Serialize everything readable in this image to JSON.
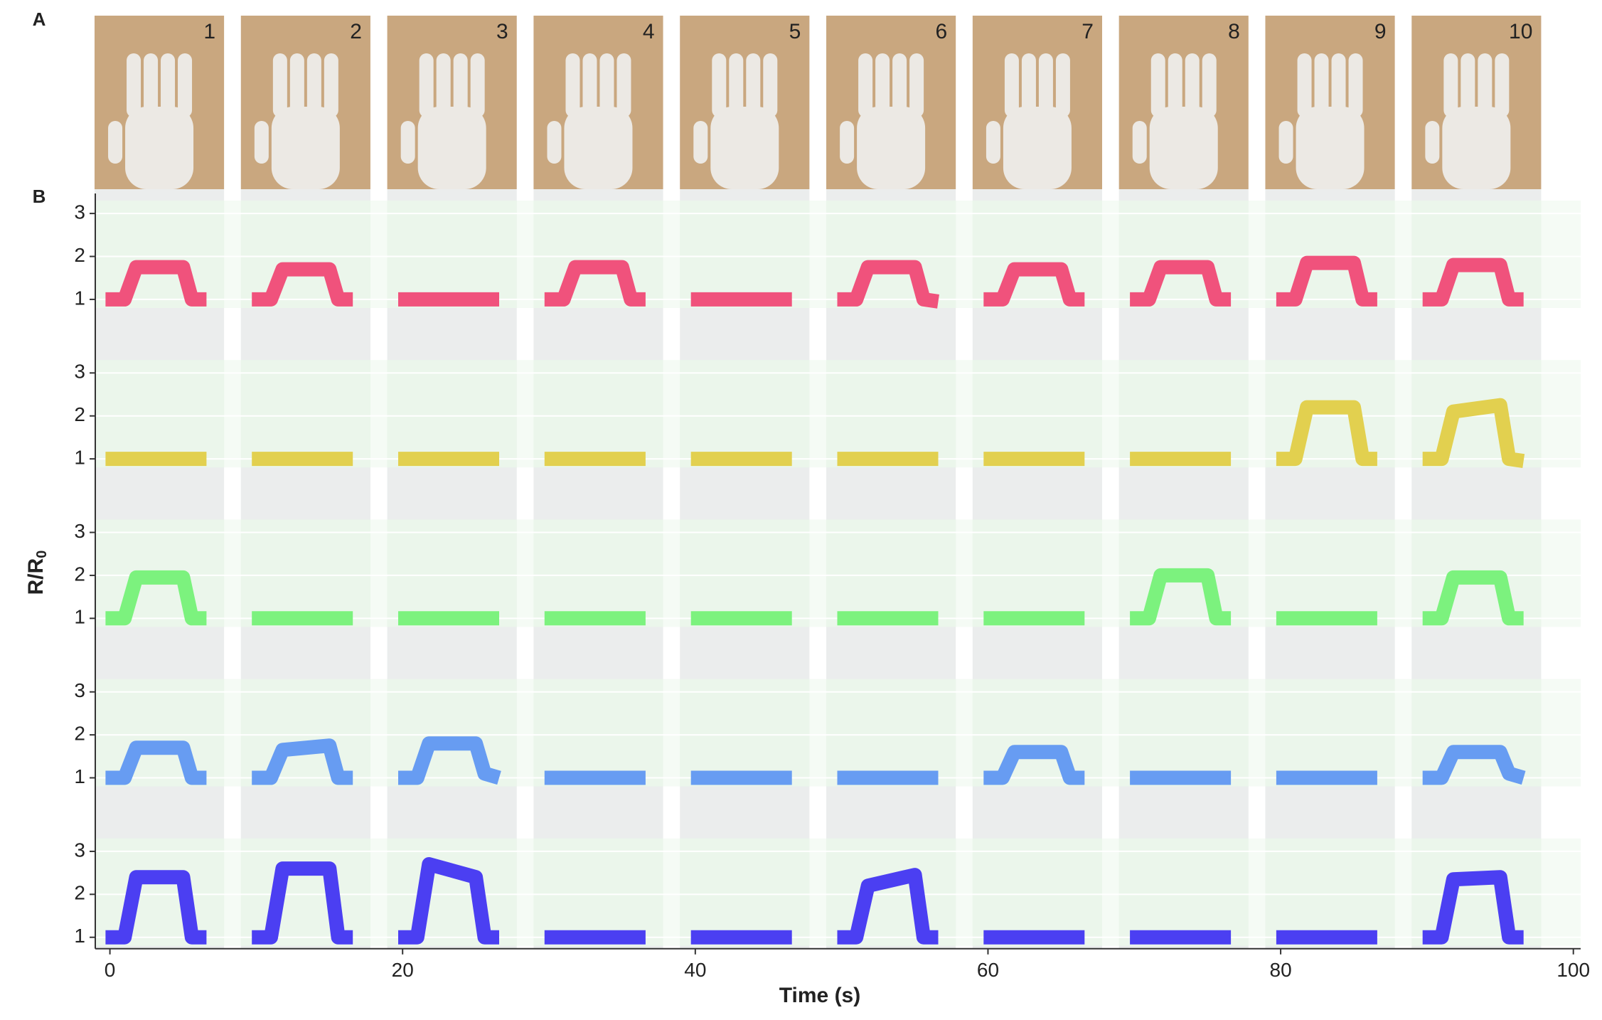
{
  "chart_data": {
    "type": "line",
    "panel_labels": [
      "A",
      "B"
    ],
    "gestures": [
      "1",
      "2",
      "3",
      "4",
      "5",
      "6",
      "7",
      "8",
      "9",
      "10"
    ],
    "xlabel": "Time (s)",
    "ylabel": "R/R",
    "ylabel_subscript": "0",
    "xlim": [
      -1,
      100.5
    ],
    "xticks": [
      0,
      20,
      40,
      60,
      80,
      100
    ],
    "ylim": [
      0.8,
      3.3
    ],
    "yticks": [
      1,
      2,
      3
    ],
    "grid": true,
    "x": [
      -0.3,
      1,
      1.8,
      5,
      5.6,
      6.6,
      8,
      9.7,
      11,
      11.8,
      15,
      15.6,
      16.6,
      18,
      19.7,
      21,
      21.8,
      25,
      25.6,
      26.6,
      28,
      29.7,
      31,
      31.8,
      35,
      35.6,
      36.6,
      38,
      39.7,
      41,
      41.8,
      45,
      45.6,
      46.6,
      48,
      49.7,
      51,
      51.8,
      55,
      55.6,
      56.6,
      58,
      59.7,
      61,
      61.8,
      65,
      65.6,
      66.6,
      68,
      69.7,
      71,
      71.8,
      75,
      75.6,
      76.6,
      78,
      79.7,
      81,
      81.8,
      85,
      85.6,
      86.6,
      88,
      89.7,
      91,
      91.8,
      95,
      95.6,
      96.6,
      98
    ],
    "series": [
      {
        "color": "#f0527c",
        "values": [
          1,
          1,
          1.75,
          1.75,
          1,
          1,
          null,
          1,
          1,
          1.7,
          1.7,
          1,
          1,
          null,
          1,
          1,
          1,
          1,
          1,
          1,
          null,
          1,
          1,
          1.75,
          1.75,
          1,
          1,
          null,
          1,
          1,
          1,
          1,
          1,
          1,
          null,
          1,
          1,
          1.75,
          1.75,
          1,
          0.95,
          null,
          1,
          1,
          1.7,
          1.7,
          1,
          1,
          null,
          1,
          1,
          1.75,
          1.75,
          1,
          1,
          null,
          1,
          1,
          1.85,
          1.85,
          1,
          1,
          null,
          1,
          1,
          1.8,
          1.8,
          1,
          1,
          null
        ]
      },
      {
        "color": "#e2d04f",
        "values": [
          1,
          1,
          1,
          1,
          1,
          1,
          null,
          1,
          1,
          1,
          1,
          1,
          1,
          null,
          1,
          1,
          1,
          1,
          1,
          1,
          null,
          1,
          1,
          1,
          1,
          1,
          1,
          null,
          1,
          1,
          1,
          1,
          1,
          1,
          null,
          1,
          1,
          1,
          1,
          1,
          1,
          null,
          1,
          1,
          1,
          1,
          1,
          1,
          null,
          1,
          1,
          1,
          1,
          1,
          1,
          null,
          1,
          1,
          2.2,
          2.2,
          1,
          1,
          null,
          1,
          1,
          2.1,
          2.25,
          1,
          0.95,
          null
        ]
      },
      {
        "color": "#7cf27e",
        "values": [
          1,
          1,
          1.95,
          1.95,
          1,
          1,
          null,
          1,
          1,
          1,
          1,
          1,
          1,
          null,
          1,
          1,
          1,
          1,
          1,
          1,
          null,
          1,
          1,
          1,
          1,
          1,
          1,
          null,
          1,
          1,
          1,
          1,
          1,
          1,
          null,
          1,
          1,
          1,
          1,
          1,
          1,
          null,
          1,
          1,
          1,
          1,
          1,
          1,
          null,
          1,
          1,
          2,
          2,
          1,
          1,
          null,
          1,
          1,
          1,
          1,
          1,
          1,
          null,
          1,
          1,
          1.95,
          1.95,
          1,
          1,
          null
        ]
      },
      {
        "color": "#679cf2",
        "values": [
          1,
          1,
          1.7,
          1.7,
          1,
          1,
          null,
          1,
          1,
          1.65,
          1.75,
          1,
          1,
          null,
          1,
          1,
          1.8,
          1.8,
          1.1,
          1,
          null,
          1,
          1,
          1,
          1,
          1,
          1,
          null,
          1,
          1,
          1,
          1,
          1,
          1,
          null,
          1,
          1,
          1,
          1,
          1,
          1,
          null,
          1,
          1,
          1.6,
          1.6,
          1,
          1,
          null,
          1,
          1,
          1,
          1,
          1,
          1,
          null,
          1,
          1,
          1,
          1,
          1,
          1,
          null,
          1,
          1,
          1.6,
          1.6,
          1.1,
          1,
          null
        ]
      },
      {
        "color": "#4b3ff2",
        "values": [
          1,
          1,
          2.4,
          2.4,
          1,
          1,
          null,
          1,
          1,
          2.6,
          2.6,
          1,
          1,
          null,
          1,
          1,
          2.7,
          2.4,
          1,
          1,
          null,
          1,
          1,
          1,
          1,
          1,
          1,
          null,
          1,
          1,
          1,
          1,
          1,
          1,
          null,
          1,
          1,
          2.2,
          2.45,
          1,
          1,
          null,
          1,
          1,
          1,
          1,
          1,
          1,
          null,
          1,
          1,
          1,
          1,
          1,
          1,
          null,
          1,
          1,
          1,
          1,
          1,
          1,
          null,
          1,
          1,
          2.35,
          2.4,
          1,
          1,
          null
        ]
      }
    ]
  }
}
